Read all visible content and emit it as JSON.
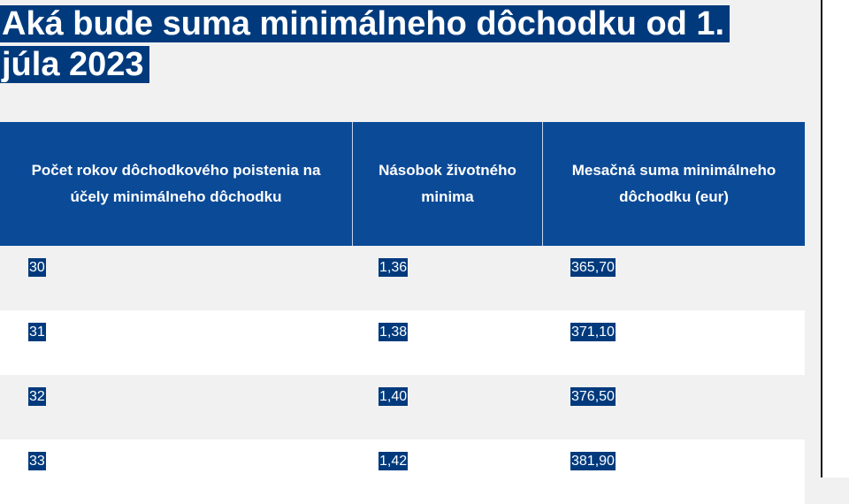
{
  "title": {
    "line1": "Aká bude suma minimálneho dôchodku od 1.",
    "line2": "júla 2023"
  },
  "table": {
    "headers": [
      "Počet rokov dôchodkového poistenia na účely minimálneho dôchodku",
      "Násobok životného minima",
      "Mesačná suma minimálneho dôchodku (eur)"
    ],
    "rows": [
      {
        "years": "30",
        "multiple": "1,36",
        "amount": "365,70"
      },
      {
        "years": "31",
        "multiple": "1,38",
        "amount": "371,10"
      },
      {
        "years": "32",
        "multiple": "1,40",
        "amount": "376,50"
      },
      {
        "years": "33",
        "multiple": "1,42",
        "amount": "381,90"
      }
    ]
  },
  "colors": {
    "header_bg": "#0b4a97",
    "highlight_bg": "#003a7d",
    "row_odd": "#f1f1f1",
    "row_even": "#ffffff"
  }
}
